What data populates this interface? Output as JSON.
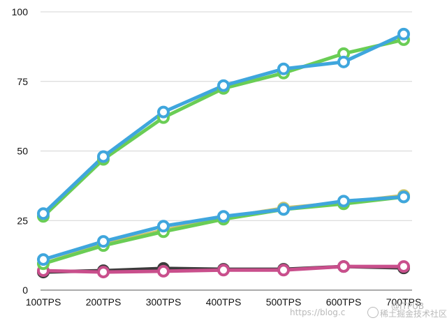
{
  "chart_data": {
    "type": "line",
    "categories": [
      "100TPS",
      "200TPS",
      "300TPS",
      "400TPS",
      "500TPS",
      "600TPS",
      "700TPS"
    ],
    "ylim": [
      0,
      100
    ],
    "yticks": [
      0,
      25,
      50,
      75,
      100
    ],
    "grid": "horizontal",
    "legend": "none",
    "series": [
      {
        "color": "#3b3b3b",
        "values": [
          6.5,
          7,
          7.8,
          7.5,
          7.5,
          8.5,
          8
        ]
      },
      {
        "color": "#c94f8c",
        "values": [
          7,
          6.5,
          6.8,
          7.2,
          7.2,
          8.5,
          8.5
        ]
      },
      {
        "color": "#c9c36a",
        "values": [
          9.5,
          16.5,
          21.5,
          26,
          29.5,
          31.5,
          34
        ]
      },
      {
        "color": "#6acd55",
        "values": [
          9.5,
          16,
          21,
          25.5,
          29,
          31,
          33.5
        ]
      },
      {
        "color": "#3fa6dd",
        "values": [
          11,
          17.5,
          23,
          26.5,
          29,
          32,
          33.5
        ]
      },
      {
        "color": "#6acd55",
        "values": [
          26.5,
          47,
          62,
          72.5,
          78,
          85,
          90
        ]
      },
      {
        "color": "#3fa6dd",
        "values": [
          27.5,
          48,
          64,
          73.5,
          79.5,
          82,
          92
        ]
      }
    ]
  },
  "watermark": {
    "url_text": "https://blog.c",
    "brand_text": "稀土掘金技术社区",
    "overlay_text": "@ITPUB"
  }
}
